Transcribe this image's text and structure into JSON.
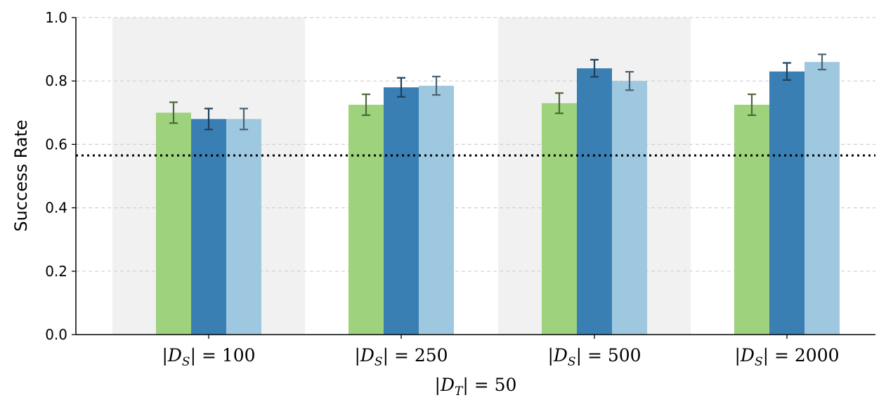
{
  "chart_data": {
    "type": "bar",
    "ylabel": "Success Rate",
    "xlabel": {
      "prefix": "|",
      "symbol": "D",
      "sub": "T",
      "suffix": "| = 50"
    },
    "ylim": [
      0,
      1.0
    ],
    "yticks": [
      "0.0",
      "0.2",
      "0.4",
      "0.6",
      "0.8",
      "1.0"
    ],
    "grid": "horizontal dashed",
    "reference_line": {
      "value": 0.565,
      "style": "dotted"
    },
    "categories": [
      {
        "prefix": "|",
        "symbol": "D",
        "sub": "S",
        "suffix": "| = 100",
        "shaded": true
      },
      {
        "prefix": "|",
        "symbol": "D",
        "sub": "S",
        "suffix": "| = 250",
        "shaded": false
      },
      {
        "prefix": "|",
        "symbol": "D",
        "sub": "S",
        "suffix": "| = 500",
        "shaded": true
      },
      {
        "prefix": "|",
        "symbol": "D",
        "sub": "S",
        "suffix": "| = 2000",
        "shaded": false
      }
    ],
    "series": [
      {
        "color": "#9ed27d",
        "error_color": "#4a6a3a",
        "values": [
          0.7,
          0.725,
          0.73,
          0.725
        ],
        "errors": [
          0.033,
          0.033,
          0.032,
          0.033
        ]
      },
      {
        "color": "#3a7fb3",
        "error_color": "#1f3f5e",
        "values": [
          0.68,
          0.78,
          0.84,
          0.83
        ],
        "errors": [
          0.033,
          0.03,
          0.027,
          0.027
        ]
      },
      {
        "color": "#9ec8e0",
        "error_color": "#4d6270",
        "values": [
          0.68,
          0.785,
          0.8,
          0.86
        ],
        "errors": [
          0.033,
          0.029,
          0.029,
          0.024
        ]
      }
    ]
  }
}
